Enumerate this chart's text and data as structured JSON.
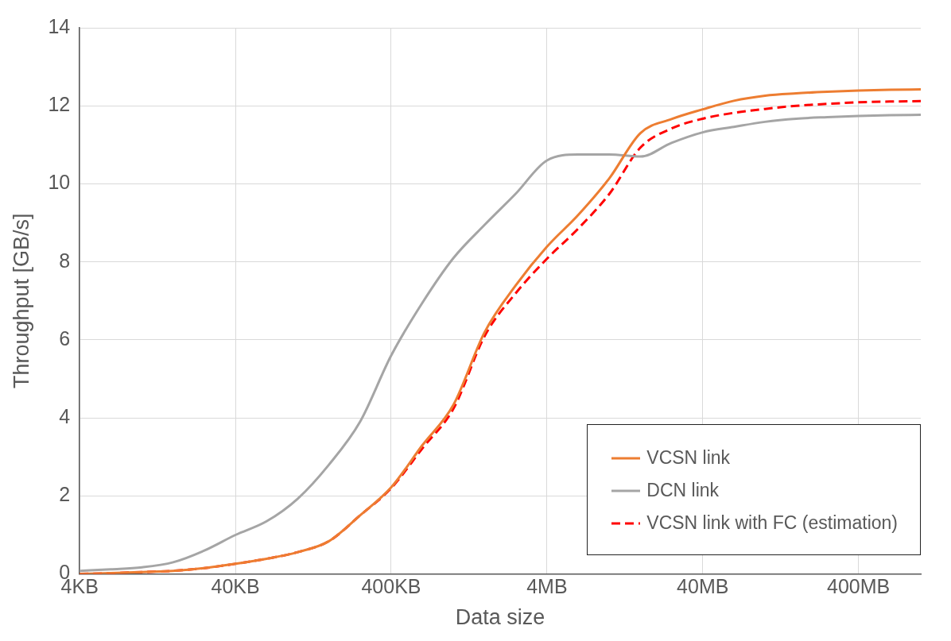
{
  "chart_data": {
    "type": "line",
    "xlabel": "Data size",
    "ylabel": "Throughput [GB/s]",
    "ylim": [
      0,
      14
    ],
    "yticks": [
      0,
      2,
      4,
      6,
      8,
      10,
      12,
      14
    ],
    "grid": true,
    "legend": "bottom right",
    "marker": "none",
    "categories": [
      "4KB",
      null,
      null,
      null,
      null,
      "40KB",
      null,
      null,
      null,
      null,
      "400KB",
      null,
      null,
      null,
      null,
      "4MB",
      null,
      null,
      null,
      null,
      "40MB",
      null,
      null,
      null,
      null,
      "400MB",
      null,
      null
    ],
    "series": [
      {
        "name": "VCSN link",
        "color": "#ed7d31",
        "line_style": "solid",
        "values": [
          0,
          0.02,
          0.05,
          0.08,
          0.15,
          0.26,
          0.39,
          0.56,
          0.84,
          1.5,
          2.22,
          3.3,
          4.34,
          6.2,
          7.4,
          8.39,
          9.2,
          10.14,
          11.3,
          11.66,
          11.91,
          12.13,
          12.26,
          12.32,
          12.36,
          12.39,
          12.41,
          12.42
        ]
      },
      {
        "name": "DCN link",
        "color": "#a5a5a5",
        "line_style": "solid",
        "values": [
          0.08,
          0.12,
          0.17,
          0.3,
          0.6,
          1,
          1.35,
          1.93,
          2.8,
          3.9,
          5.6,
          6.95,
          8.1,
          8.95,
          9.75,
          10.6,
          10.75,
          10.75,
          10.7,
          11.05,
          11.32,
          11.46,
          11.59,
          11.67,
          11.71,
          11.74,
          11.76,
          11.77
        ]
      },
      {
        "name": "VCSN link with FC (estimation)",
        "color": "#ff0000",
        "line_style": "dashed",
        "values": [
          0,
          0.02,
          0.05,
          0.08,
          0.15,
          0.26,
          0.39,
          0.56,
          0.84,
          1.5,
          2.2,
          3.22,
          4.24,
          6.1,
          7.2,
          8.08,
          8.85,
          9.74,
          10.93,
          11.42,
          11.67,
          11.82,
          11.92,
          12,
          12.05,
          12.09,
          12.11,
          12.12
        ]
      }
    ]
  }
}
